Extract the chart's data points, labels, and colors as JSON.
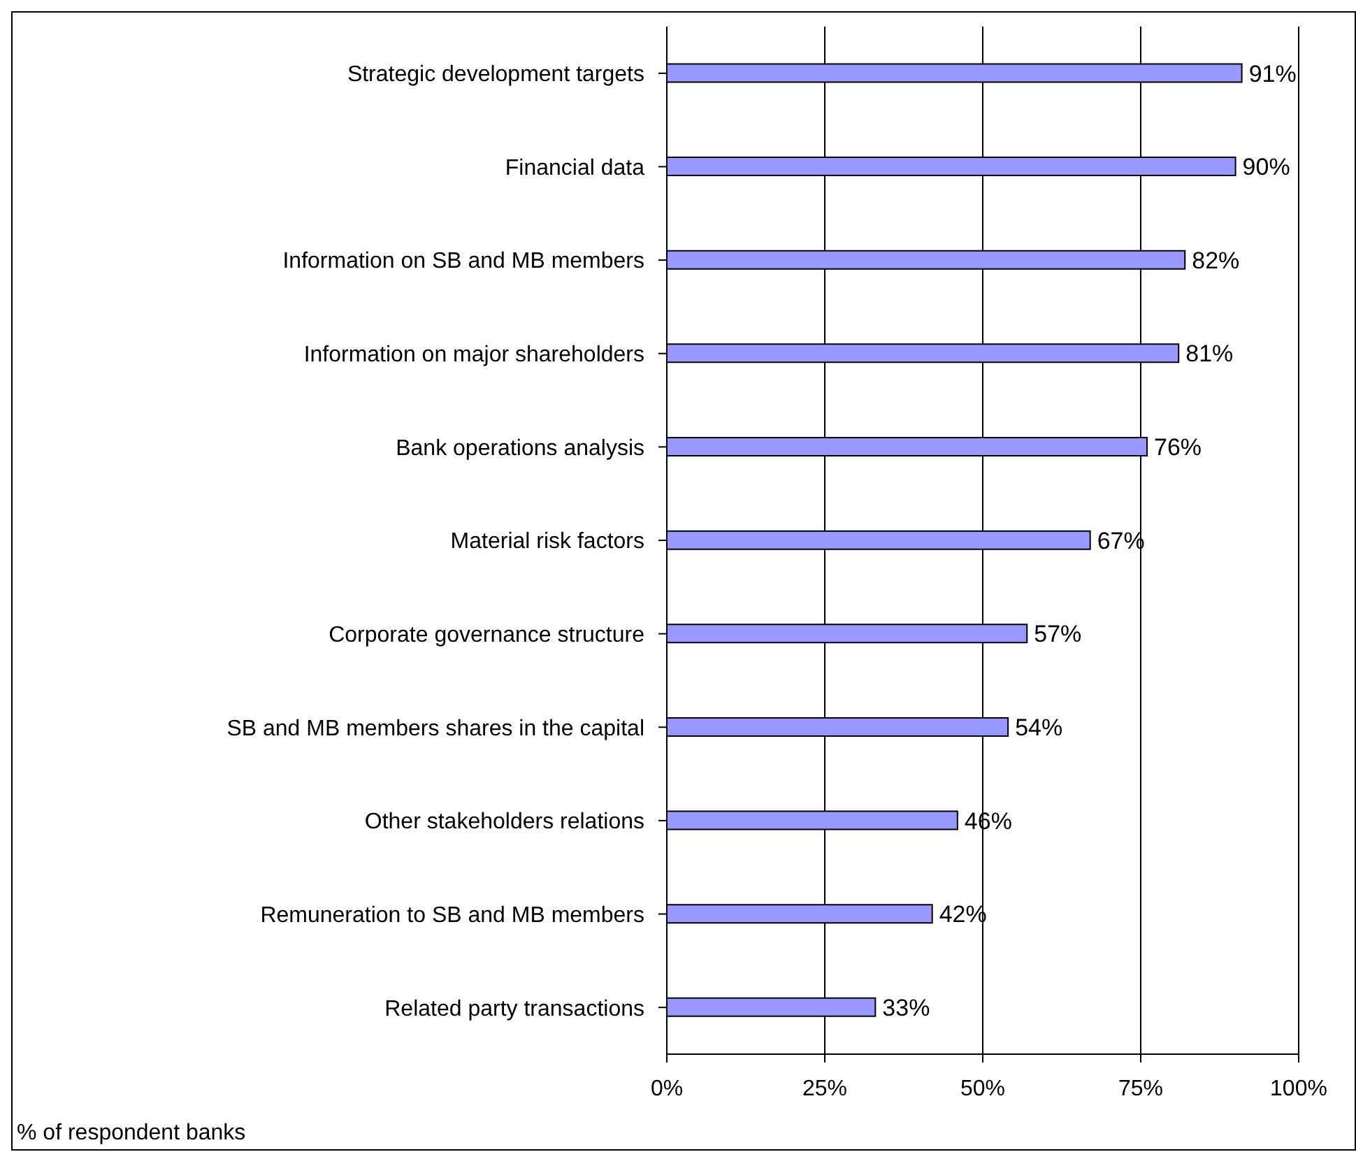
{
  "chart_data": {
    "type": "bar",
    "orientation": "horizontal",
    "xlabel": "% of respondent banks",
    "categories": [
      "Strategic development targets",
      "Financial data",
      "Information on SB and MB members",
      "Information on major shareholders",
      "Bank operations analysis",
      "Material risk factors",
      "Corporate governance structure",
      "SB and MB members shares in the capital",
      "Other stakeholders relations",
      "Remuneration to SB and MB members",
      "Related party transactions"
    ],
    "values": [
      91,
      90,
      82,
      81,
      76,
      67,
      57,
      54,
      46,
      42,
      33
    ],
    "value_labels": [
      "91%",
      "90%",
      "82%",
      "81%",
      "76%",
      "67%",
      "57%",
      "54%",
      "46%",
      "42%",
      "33%"
    ],
    "color": "#9999ff",
    "xlim": [
      0,
      100
    ],
    "xticks": [
      {
        "value": 0,
        "label": "0%"
      },
      {
        "value": 25,
        "label": "25%"
      },
      {
        "value": 50,
        "label": "50%"
      },
      {
        "value": 75,
        "label": "75%"
      },
      {
        "value": 100,
        "label": "100%"
      }
    ],
    "grid": "x",
    "legend": false
  }
}
